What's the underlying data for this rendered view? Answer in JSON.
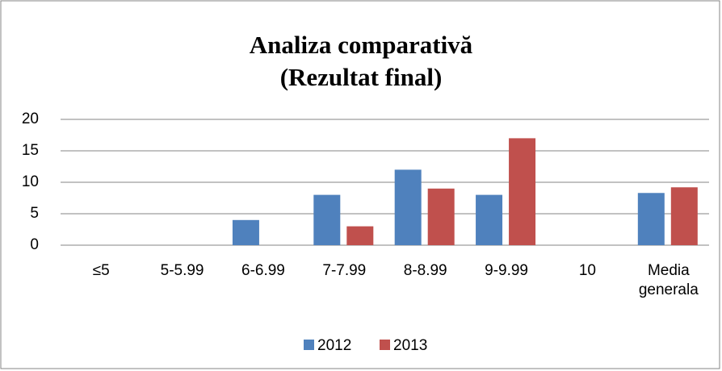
{
  "chart_data": {
    "type": "bar",
    "title": "Analiza comparativă\n(Rezultat final)",
    "categories": [
      "≤5",
      "5-5.99",
      "6-6.99",
      "7-7.99",
      "8-8.99",
      "9-9.99",
      "10",
      "Media generala"
    ],
    "series": [
      {
        "name": "2012",
        "color": "#4f81bd",
        "values": [
          0,
          0,
          4,
          8,
          12,
          8,
          0,
          8.3
        ]
      },
      {
        "name": "2013",
        "color": "#c0504d",
        "values": [
          0,
          0,
          0,
          3,
          9,
          17,
          0,
          9.2
        ]
      }
    ],
    "ylim": [
      0,
      20
    ],
    "yticks": [
      0,
      5,
      10,
      15,
      20
    ],
    "grid": true,
    "legend": "bottom"
  }
}
